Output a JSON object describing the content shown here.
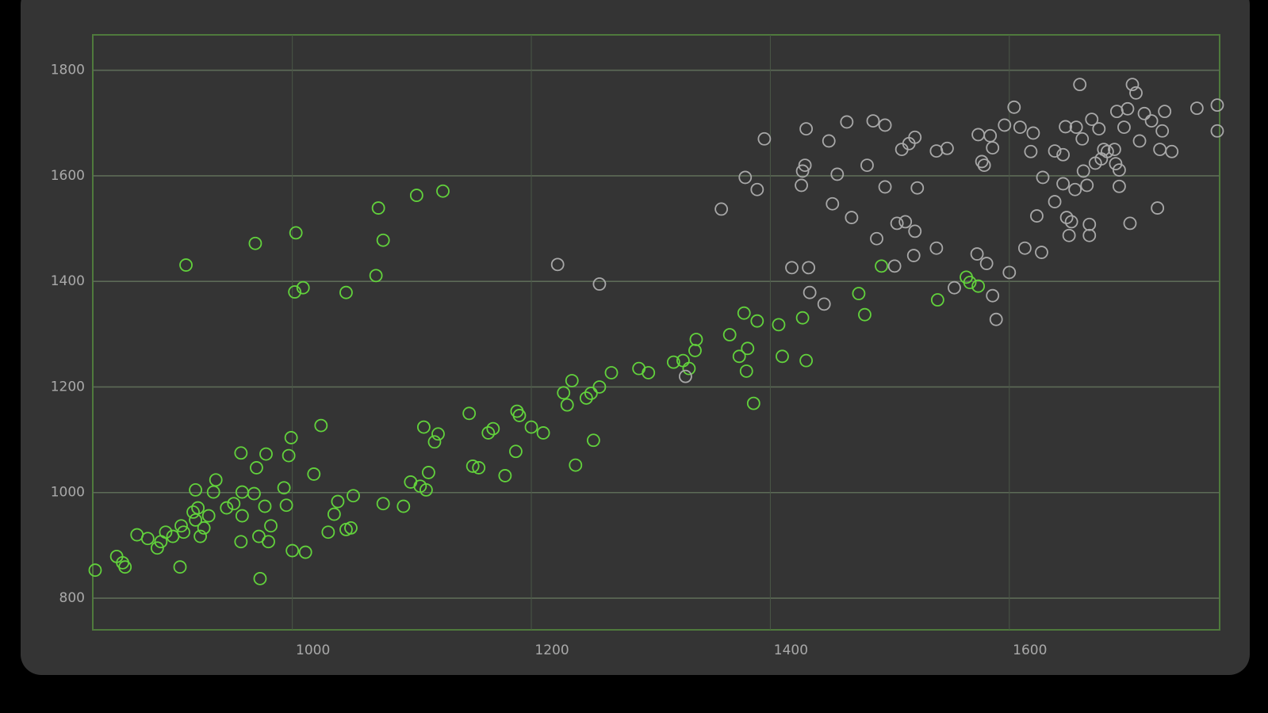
{
  "chart_data": {
    "type": "scatter",
    "xlim": [
      833,
      1776
    ],
    "ylim": [
      740,
      1867
    ],
    "xticks": [
      1000,
      1200,
      1400,
      1600
    ],
    "yticks": [
      800,
      1000,
      1200,
      1400,
      1600,
      1800
    ],
    "grid": true,
    "series": [
      {
        "color": "#62d23c",
        "x": [
          835,
          853,
          858,
          860,
          870,
          879,
          887,
          890,
          894,
          900,
          907,
          909,
          906,
          911,
          917,
          919,
          921,
          923,
          926,
          930,
          934,
          936,
          919,
          945,
          951,
          957,
          958,
          957,
          958,
          969,
          970,
          968,
          972,
          973,
          977,
          978,
          980,
          982,
          993,
          995,
          997,
          999,
          1000,
          1002,
          1009,
          1011,
          1003,
          1018,
          1024,
          1030,
          1035,
          1038,
          1045,
          1049,
          1051,
          1045,
          1070,
          1072,
          1076,
          1076,
          1093,
          1099,
          1104,
          1107,
          1110,
          1112,
          1114,
          1119,
          1122,
          1126,
          1148,
          1151,
          1156,
          1164,
          1168,
          1178,
          1187,
          1188,
          1190,
          1200,
          1210,
          1227,
          1230,
          1234,
          1237,
          1246,
          1250,
          1252,
          1257,
          1267,
          1290,
          1298,
          1319,
          1327,
          1332,
          1337,
          1338,
          1366,
          1374,
          1378,
          1380,
          1381,
          1386,
          1389,
          1407,
          1410,
          1427,
          1430,
          1474,
          1479,
          1493,
          1540,
          1564,
          1567,
          1574
        ],
        "values": [
          853,
          879,
          867,
          859,
          920,
          913,
          895,
          907,
          925,
          917,
          937,
          925,
          859,
          1431,
          963,
          948,
          971,
          917,
          933,
          956,
          1001,
          1024,
          1005,
          971,
          979,
          1075,
          1001,
          907,
          956,
          1472,
          1047,
          998,
          917,
          837,
          974,
          1073,
          907,
          937,
          1009,
          976,
          1070,
          1104,
          890,
          1380,
          1388,
          887,
          1492,
          1035,
          1127,
          925,
          959,
          983,
          930,
          933,
          994,
          1379,
          1411,
          1539,
          1478,
          979,
          974,
          1020,
          1563,
          1012,
          1124,
          1005,
          1038,
          1096,
          1111,
          1571,
          1150,
          1050,
          1047,
          1113,
          1121,
          1032,
          1078,
          1154,
          1146,
          1124,
          1113,
          1189,
          1166,
          1212,
          1052,
          1179,
          1188,
          1099,
          1200,
          1227,
          1235,
          1227,
          1247,
          1250,
          1235,
          1269,
          1290,
          1299,
          1258,
          1340,
          1230,
          1273,
          1169,
          1325,
          1318,
          1258,
          1331,
          1250,
          1377,
          1337,
          1429,
          1365,
          1408,
          1398,
          1391
        ]
      },
      {
        "color": "#a8a8a8",
        "x": [
          1222,
          1257,
          1329,
          1359,
          1379,
          1389,
          1395,
          1418,
          1426,
          1427,
          1429,
          1430,
          1432,
          1433,
          1445,
          1449,
          1452,
          1456,
          1464,
          1468,
          1481,
          1486,
          1489,
          1496,
          1496,
          1504,
          1506,
          1510,
          1513,
          1516,
          1521,
          1520,
          1521,
          1523,
          1539,
          1539,
          1548,
          1554,
          1573,
          1574,
          1577,
          1579,
          1581,
          1584,
          1586,
          1586,
          1589,
          1596,
          1600,
          1604,
          1609,
          1613,
          1618,
          1620,
          1623,
          1627,
          1628,
          1638,
          1638,
          1645,
          1645,
          1647,
          1648,
          1650,
          1652,
          1655,
          1656,
          1659,
          1661,
          1662,
          1665,
          1667,
          1667,
          1669,
          1672,
          1675,
          1677,
          1679,
          1682,
          1688,
          1689,
          1690,
          1692,
          1692,
          1696,
          1699,
          1701,
          1703,
          1706,
          1709,
          1713,
          1719,
          1724,
          1726,
          1728,
          1730,
          1736,
          1757,
          1774,
          1774
        ],
        "values": [
          1432,
          1395,
          1220,
          1537,
          1597,
          1574,
          1670,
          1426,
          1582,
          1609,
          1620,
          1689,
          1426,
          1379,
          1357,
          1666,
          1547,
          1603,
          1702,
          1521,
          1620,
          1704,
          1481,
          1696,
          1579,
          1429,
          1510,
          1650,
          1513,
          1661,
          1673,
          1449,
          1495,
          1577,
          1463,
          1647,
          1652,
          1388,
          1452,
          1678,
          1627,
          1620,
          1434,
          1676,
          1653,
          1373,
          1328,
          1696,
          1417,
          1730,
          1692,
          1463,
          1646,
          1681,
          1524,
          1455,
          1597,
          1551,
          1647,
          1640,
          1585,
          1693,
          1521,
          1487,
          1513,
          1574,
          1692,
          1773,
          1670,
          1609,
          1582,
          1487,
          1508,
          1707,
          1624,
          1689,
          1632,
          1650,
          1646,
          1650,
          1623,
          1722,
          1580,
          1611,
          1692,
          1727,
          1510,
          1773,
          1757,
          1666,
          1718,
          1704,
          1539,
          1650,
          1685,
          1722,
          1646,
          1728,
          1734,
          1685
        ]
      }
    ]
  }
}
